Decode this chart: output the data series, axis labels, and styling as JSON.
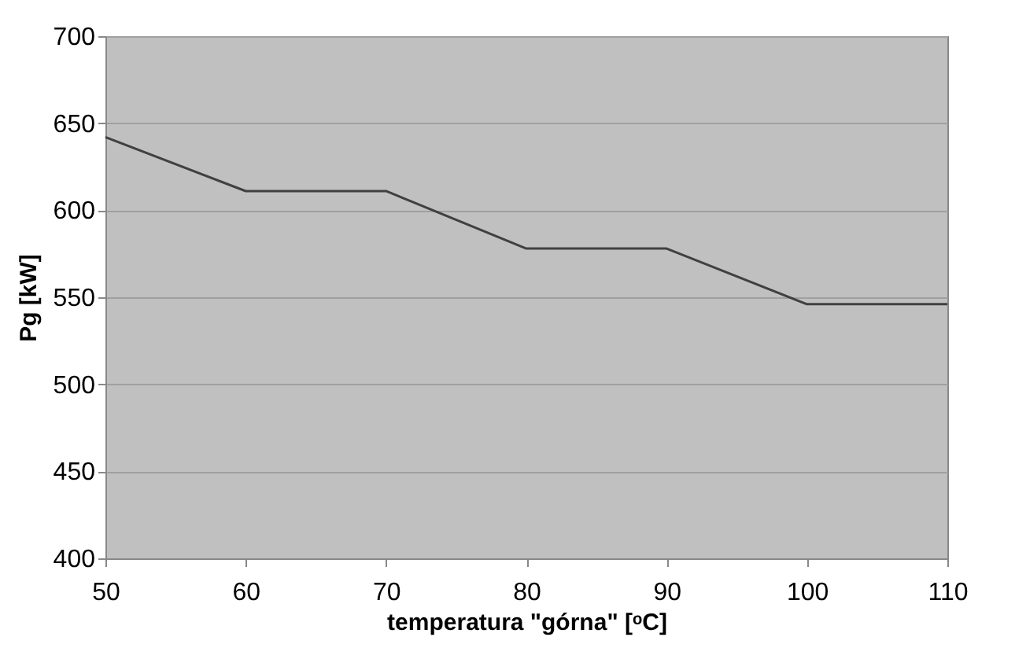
{
  "chart_data": {
    "type": "line",
    "xlabel": "temperatura \"górna\" [ᵒC]",
    "ylabel": "Pg [kW]",
    "x": [
      50,
      60,
      70,
      80,
      90,
      100,
      110
    ],
    "series": [
      {
        "color": "#404040",
        "values": [
          642,
          611,
          611,
          578,
          578,
          546,
          546
        ]
      }
    ],
    "xlim": [
      50,
      110
    ],
    "xticks": [
      50,
      60,
      70,
      80,
      90,
      100,
      110
    ],
    "ylim": [
      400,
      700
    ],
    "yticks": [
      400,
      450,
      500,
      550,
      600,
      650,
      700
    ],
    "grid": "y",
    "legend": false,
    "marker": "none",
    "line_style": "solid"
  }
}
